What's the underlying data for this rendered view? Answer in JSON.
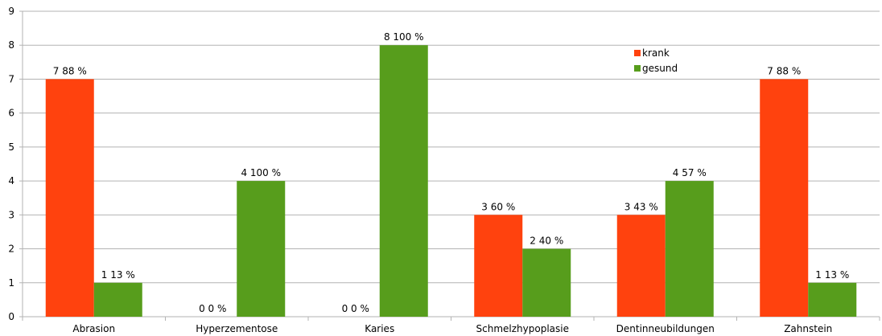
{
  "chart_data": {
    "type": "bar",
    "categories": [
      "Abrasion",
      "Hyperzementose",
      "Karies",
      "Schmelzhypoplasie",
      "Dentinneubildungen",
      "Zahnstein"
    ],
    "series": [
      {
        "name": "krank",
        "color": "#ff420e",
        "values": [
          7,
          0,
          0,
          3,
          3,
          7
        ],
        "labels": [
          "7 88 %",
          "0 0 %",
          "0 0 %",
          "3 60 %",
          "3 43 %",
          "7 88 %"
        ]
      },
      {
        "name": "gesund",
        "color": "#579d1c",
        "values": [
          1,
          4,
          8,
          2,
          4,
          1
        ],
        "labels": [
          "1 13 %",
          "4 100 %",
          "8 100 %",
          "2 40 %",
          "4 57 %",
          "1 13 %"
        ]
      }
    ],
    "y_ticks": [
      "0",
      "1",
      "2",
      "3",
      "4",
      "5",
      "6",
      "7",
      "8",
      "9"
    ],
    "ylim": [
      0,
      9
    ],
    "grid": true,
    "legend_position": "top-right",
    "title": "",
    "xlabel": "",
    "ylabel": ""
  }
}
